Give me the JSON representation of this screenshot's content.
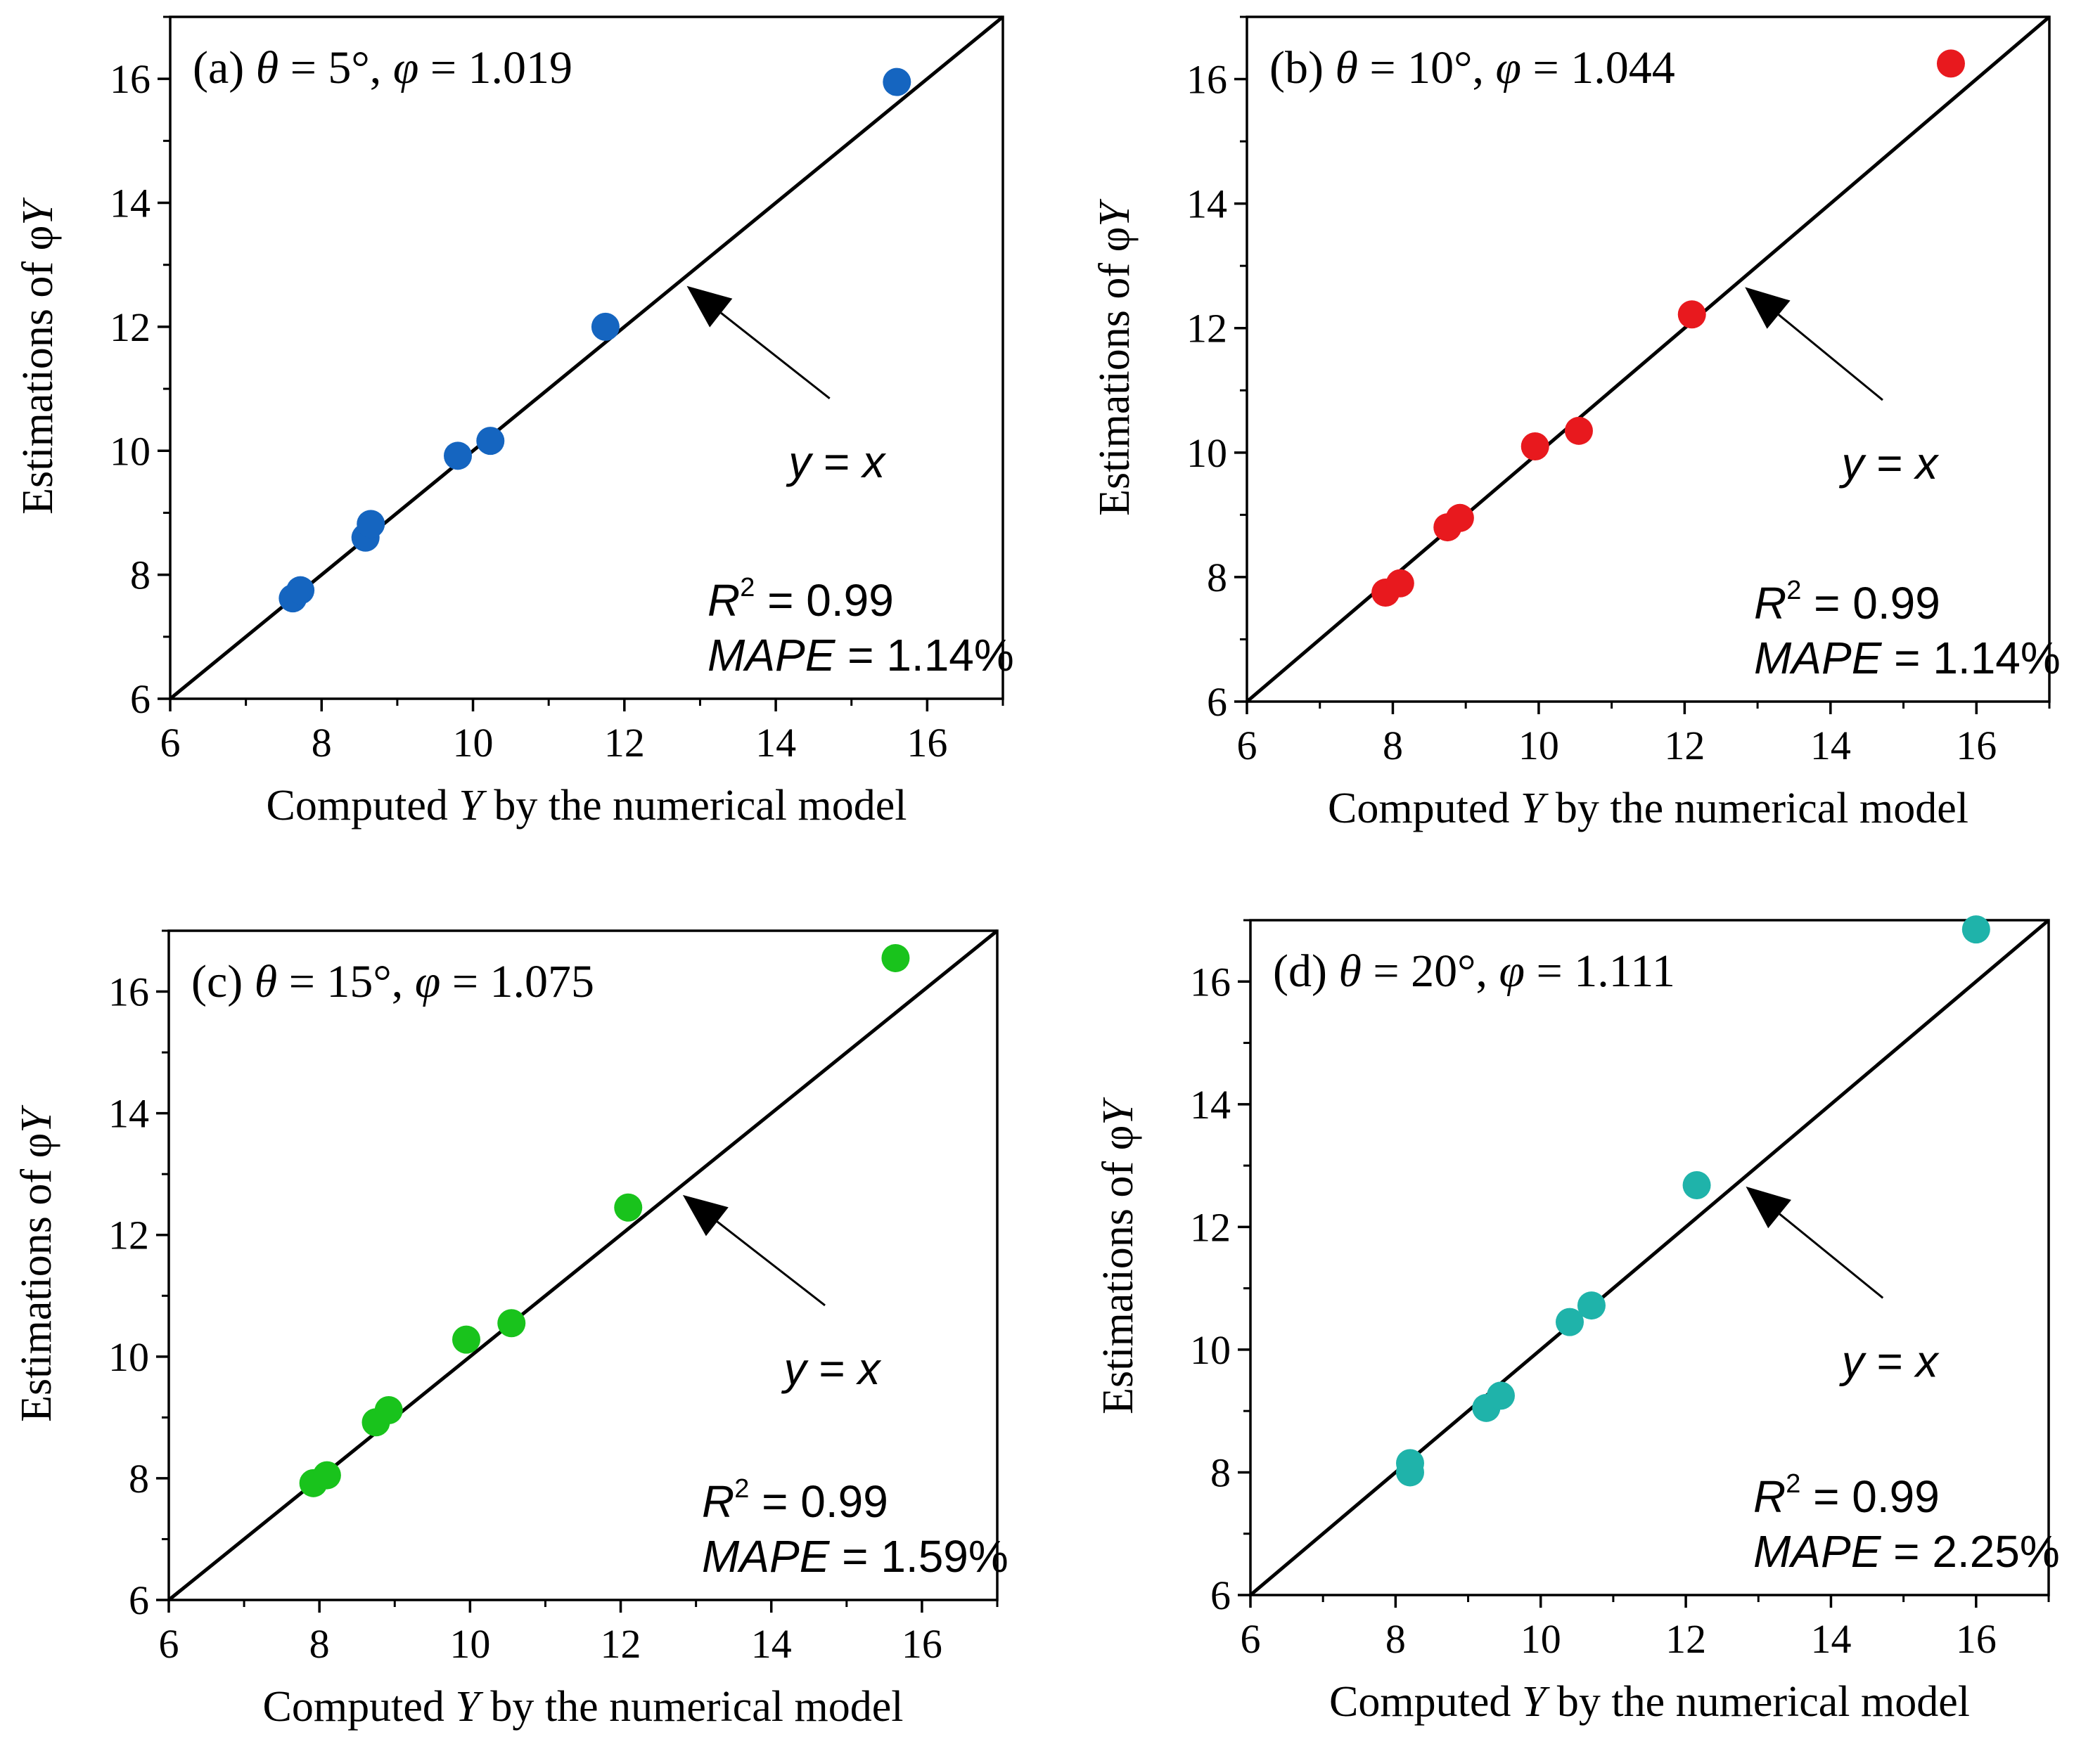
{
  "figure": {
    "chart_data": [
      {
        "type": "scatter",
        "title": "(a) θ = 5°, φ = 1.019",
        "title_parts": {
          "letter": "(a) ",
          "theta_sym": "θ",
          "theta_val": " = 5°, ",
          "phi_sym": "φ",
          "phi_val": " = 1.019"
        },
        "xlabel": "Computed Y by the numerical model",
        "xlabel_parts": {
          "pre": "Computed ",
          "var": "Y",
          "post": " by the numerical model"
        },
        "ylabel": "Estimations of φY",
        "ylabel_parts": {
          "pre": "Estimations of φ",
          "var": "Y"
        },
        "xlim": [
          6,
          17
        ],
        "ylim": [
          6,
          17
        ],
        "xticks": [
          6,
          8,
          10,
          12,
          14,
          16
        ],
        "yticks": [
          6,
          8,
          10,
          12,
          14,
          16
        ],
        "point_color": "#1565C0",
        "x": [
          7.62,
          7.72,
          8.58,
          8.65,
          9.8,
          10.23,
          11.75,
          15.6
        ],
        "y": [
          7.62,
          7.75,
          8.6,
          8.82,
          9.92,
          10.16,
          12.0,
          15.95
        ],
        "reference_line": "y = x",
        "annotation": "y = x",
        "annotation_parts": {
          "y": "y",
          "eq": " = ",
          "x": "x"
        },
        "stats": {
          "r2_label": "R",
          "r2_sup": "2",
          "r2_value": " = 0.99",
          "mape_label": "MAPE",
          "mape_value": " = 1.14%"
        }
      },
      {
        "type": "scatter",
        "title": "(b) θ = 10°, φ = 1.044",
        "title_parts": {
          "letter": "(b) ",
          "theta_sym": "θ",
          "theta_val": " = 10°, ",
          "phi_sym": "φ",
          "phi_val": " = 1.044"
        },
        "xlabel": "Computed Y by the numerical model",
        "xlabel_parts": {
          "pre": "Computed ",
          "var": "Y",
          "post": " by the numerical model"
        },
        "ylabel": "Estimations of φY",
        "ylabel_parts": {
          "pre": "Estimations of φ",
          "var": "Y"
        },
        "xlim": [
          6,
          17
        ],
        "ylim": [
          6,
          17
        ],
        "xticks": [
          6,
          8,
          10,
          12,
          14,
          16
        ],
        "yticks": [
          6,
          8,
          10,
          12,
          14,
          16
        ],
        "point_color": "#E8191E",
        "x": [
          7.9,
          8.1,
          8.75,
          8.92,
          9.95,
          10.55,
          12.1,
          15.65
        ],
        "y": [
          7.75,
          7.9,
          8.8,
          8.95,
          10.1,
          10.35,
          12.22,
          16.25
        ],
        "reference_line": "y = x",
        "annotation": "y = x",
        "annotation_parts": {
          "y": "y",
          "eq": " = ",
          "x": "x"
        },
        "stats": {
          "r2_label": "R",
          "r2_sup": "2",
          "r2_value": " = 0.99",
          "mape_label": "MAPE",
          "mape_value": " = 1.14%"
        }
      },
      {
        "type": "scatter",
        "title": "(c) θ = 15°, φ = 1.075",
        "title_parts": {
          "letter": "(c) ",
          "theta_sym": "θ",
          "theta_val": " = 15°, ",
          "phi_sym": "φ",
          "phi_val": " = 1.075"
        },
        "xlabel": "Computed Y by the numerical model",
        "xlabel_parts": {
          "pre": "Computed ",
          "var": "Y",
          "post": " by the numerical model"
        },
        "ylabel": "Estimations of φY",
        "ylabel_parts": {
          "pre": "Estimations of φ",
          "var": "Y"
        },
        "xlim": [
          6,
          17
        ],
        "ylim": [
          6,
          17
        ],
        "xticks": [
          6,
          8,
          10,
          12,
          14,
          16
        ],
        "yticks": [
          6,
          8,
          10,
          12,
          14,
          16
        ],
        "point_color": "#19C31C",
        "x": [
          7.92,
          8.1,
          8.75,
          8.92,
          9.95,
          10.55,
          12.1,
          15.65
        ],
        "y": [
          7.92,
          8.05,
          8.92,
          9.12,
          10.28,
          10.55,
          12.45,
          16.55
        ],
        "reference_line": "y = x",
        "annotation": "y = x",
        "annotation_parts": {
          "y": "y",
          "eq": " = ",
          "x": "x"
        },
        "stats": {
          "r2_label": "R",
          "r2_sup": "2",
          "r2_value": " = 0.99",
          "mape_label": "MAPE",
          "mape_value": " = 1.59%"
        }
      },
      {
        "type": "scatter",
        "title": "(d) θ = 20°, φ = 1.111",
        "title_parts": {
          "letter": "(d) ",
          "theta_sym": "θ",
          "theta_val": " = 20°, ",
          "phi_sym": "φ",
          "phi_val": " = 1.111"
        },
        "xlabel": "Computed Y by the numerical model",
        "xlabel_parts": {
          "pre": "Computed ",
          "var": "Y",
          "post": " by the numerical model"
        },
        "ylabel": "Estimations of φY",
        "ylabel_parts": {
          "pre": "Estimations of φ",
          "var": "Y"
        },
        "xlim": [
          6,
          17
        ],
        "ylim": [
          6,
          17
        ],
        "xticks": [
          6,
          8,
          10,
          12,
          14,
          16
        ],
        "yticks": [
          6,
          8,
          10,
          12,
          14,
          16
        ],
        "point_color": "#1FB3AA",
        "x": [
          8.2,
          8.2,
          9.25,
          9.45,
          10.4,
          10.7,
          12.15,
          16.0
        ],
        "y": [
          8.15,
          8.0,
          9.05,
          9.25,
          10.45,
          10.72,
          12.68,
          16.85
        ],
        "reference_line": "y = x",
        "annotation": "y = x",
        "annotation_parts": {
          "y": "y",
          "eq": " = ",
          "x": "x"
        },
        "stats": {
          "r2_label": "R",
          "r2_sup": "2",
          "r2_value": " = 0.99",
          "mape_label": "MAPE",
          "mape_value": " = 2.25%"
        }
      }
    ]
  }
}
